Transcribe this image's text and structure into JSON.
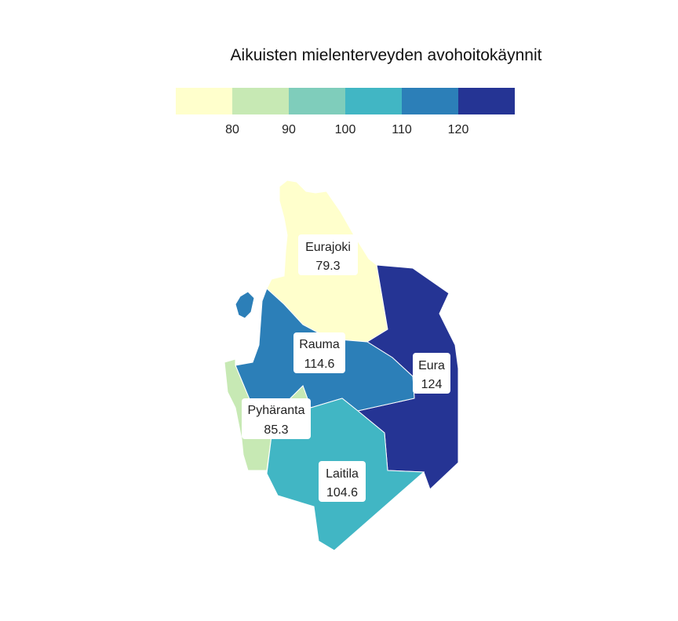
{
  "title": "Aikuisten mielenterveyden avohoitokäynnit",
  "legend": {
    "breaks": [
      80,
      90,
      100,
      110,
      120
    ],
    "tick_labels": [
      "80",
      "90",
      "100",
      "110",
      "120"
    ],
    "colors": [
      "#ffffcc",
      "#c7e9b4",
      "#7fcdbb",
      "#41b6c4",
      "#2c7fb8",
      "#253494"
    ]
  },
  "regions": [
    {
      "name": "Eurajoki",
      "value": 79.3,
      "value_label": "79.3"
    },
    {
      "name": "Rauma",
      "value": 114.6,
      "value_label": "114.6"
    },
    {
      "name": "Eura",
      "value": 124,
      "value_label": "124"
    },
    {
      "name": "Pyhäranta",
      "value": 85.3,
      "value_label": "85.3"
    },
    {
      "name": "Laitila",
      "value": 104.6,
      "value_label": "104.6"
    }
  ]
}
